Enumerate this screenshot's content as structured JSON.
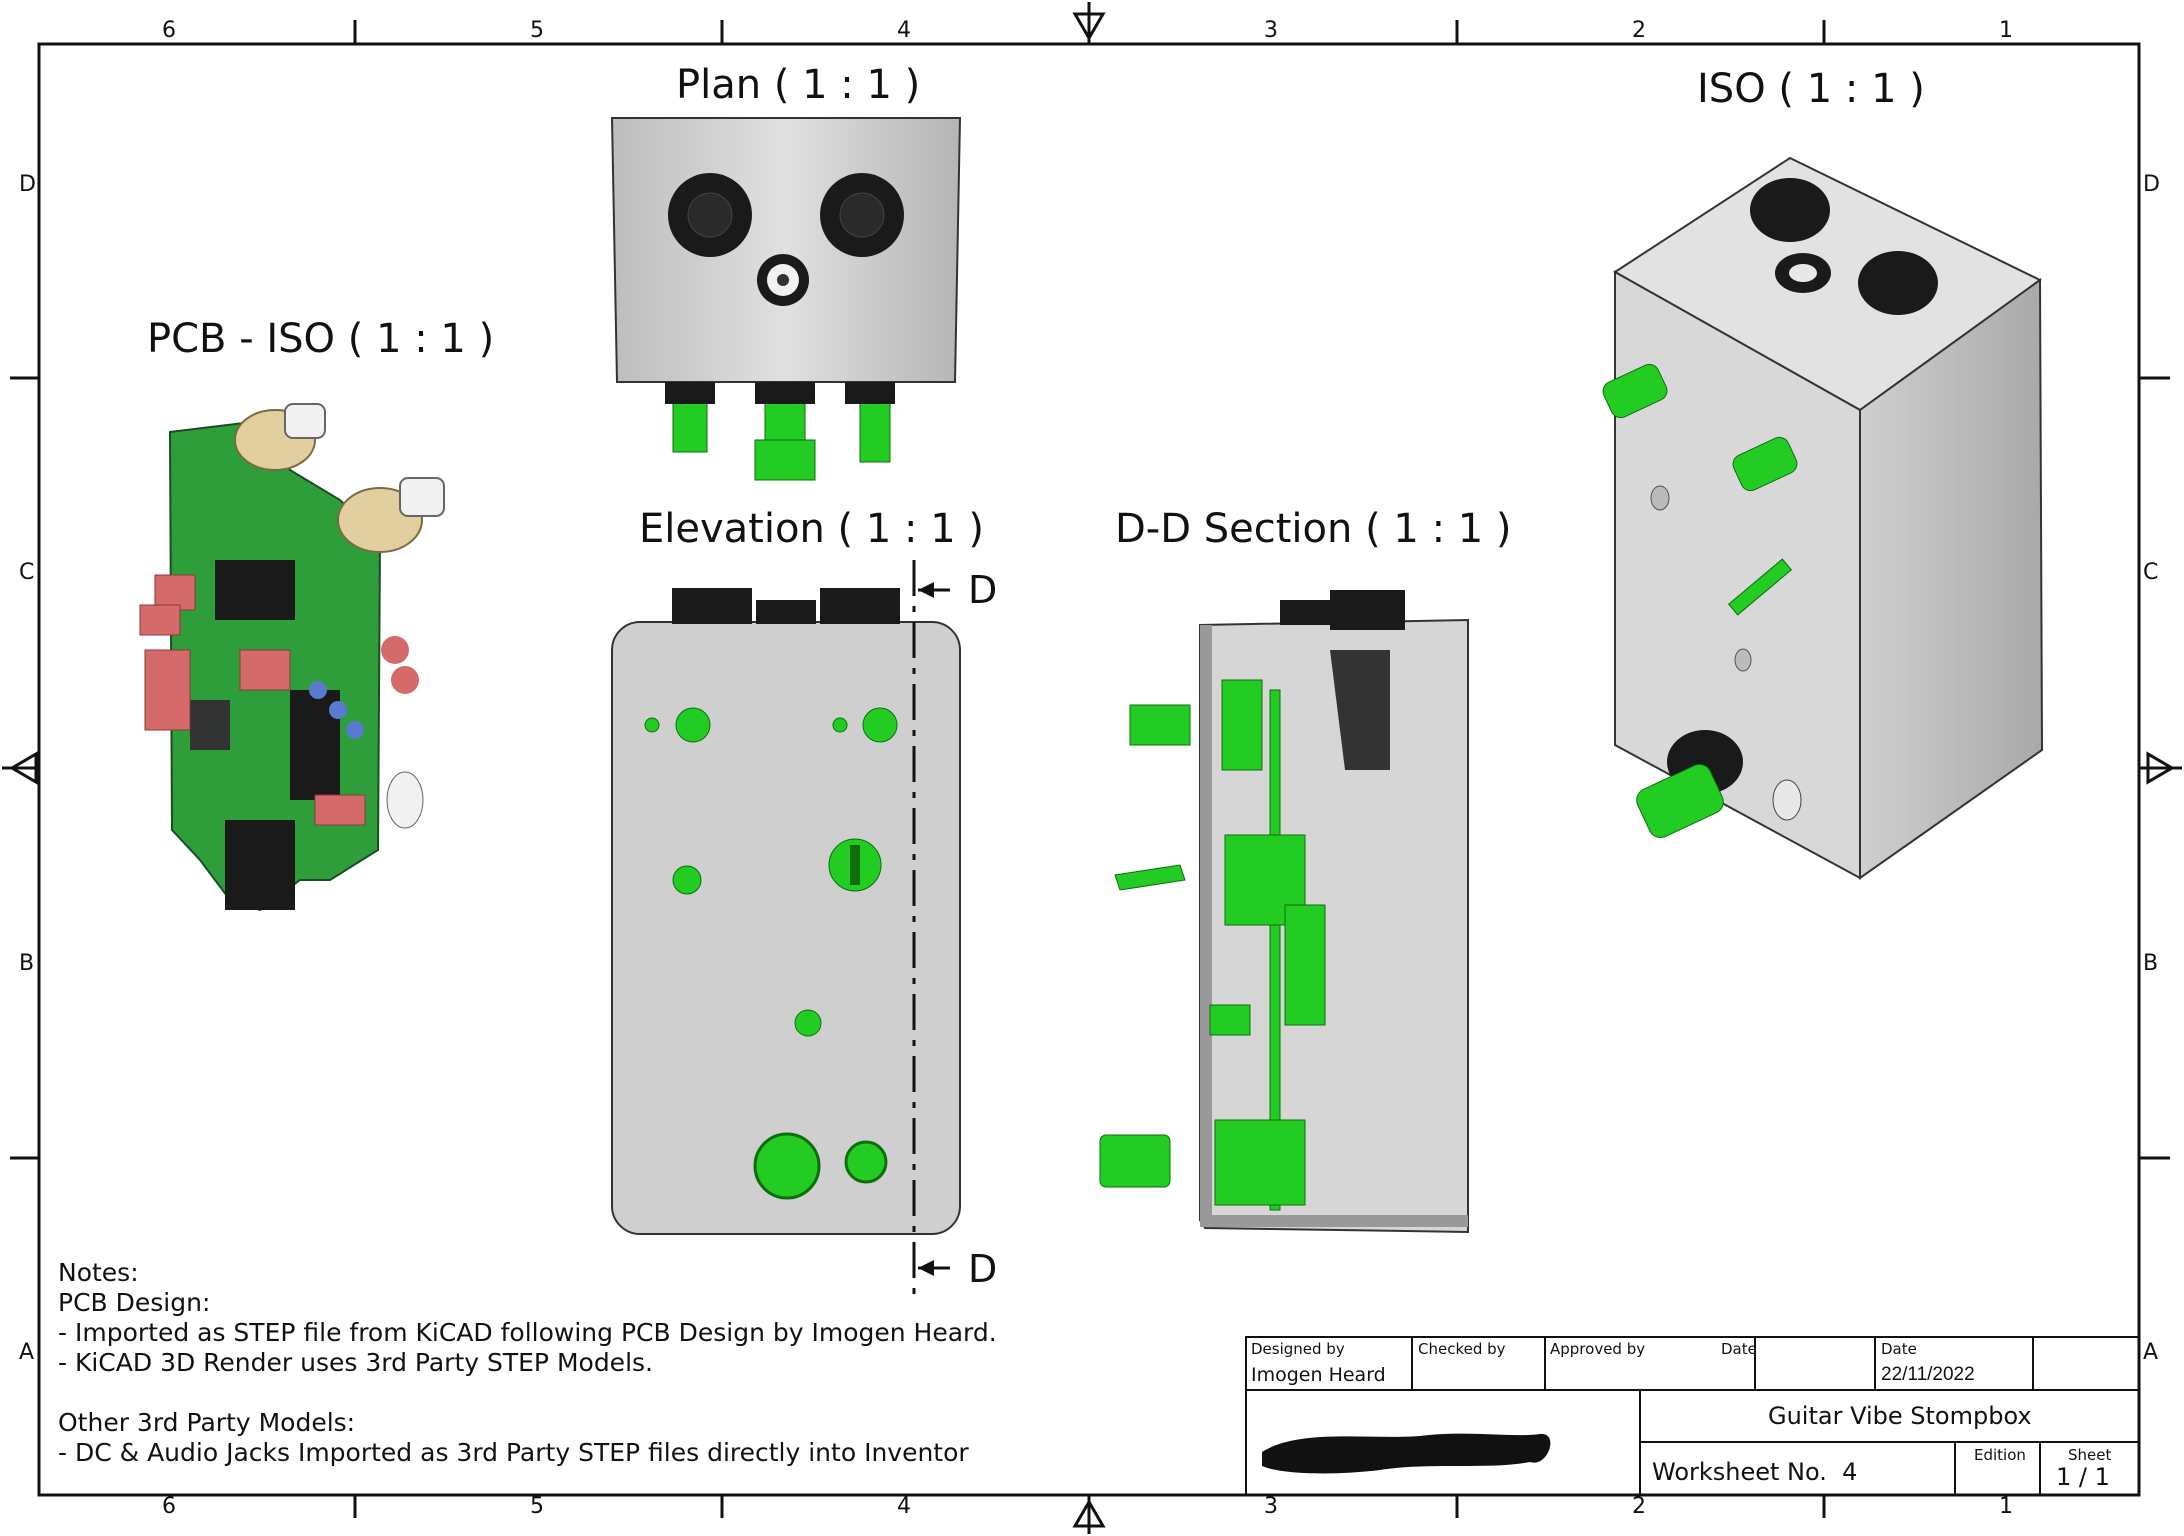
{
  "grid": {
    "columns": [
      "6",
      "5",
      "4",
      "3",
      "2",
      "1"
    ],
    "rows": [
      "D",
      "C",
      "B",
      "A"
    ]
  },
  "views": {
    "pcb_iso": "PCB - ISO ( 1 : 1 )",
    "plan": "Plan ( 1 : 1 )",
    "elevation": "Elevation ( 1 : 1 )",
    "section": "D-D Section ( 1 : 1 )",
    "iso": "ISO ( 1 : 1 )"
  },
  "section_marker": {
    "top": "D",
    "bottom": "D"
  },
  "notes": {
    "heading": "Notes:",
    "pcb_heading": "PCB Design:",
    "pcb_line1": "- Imported as STEP file from KiCAD following PCB Design by Imogen Heard.",
    "pcb_line2": "- KiCAD 3D Render uses 3rd Party STEP Models.",
    "other_heading": "Other 3rd Party Models:",
    "other_line1": "- DC & Audio Jacks Imported as 3rd Party STEP files directly into Inventor"
  },
  "title_block": {
    "designed_by_label": "Designed by",
    "designed_by": "Imogen Heard",
    "checked_by_label": "Checked by",
    "approved_by_label": "Approved by",
    "date_label_1": "Date",
    "date_label_2": "Date",
    "date": "22/11/2022",
    "title": "Guitar Vibe Stompbox",
    "worksheet": "Worksheet No.  4",
    "edition_label": "Edition",
    "sheet_label": "Sheet",
    "sheet": "1 / 1"
  },
  "colors": {
    "frame": "#111111",
    "pcb_green": "#2e9e3a",
    "part_green": "#22cc22",
    "enclosure": "#c8c8c8",
    "jack_black": "#1a1a1a",
    "cap_red": "#d46a6a",
    "pot_beige": "#e2cfa0"
  }
}
